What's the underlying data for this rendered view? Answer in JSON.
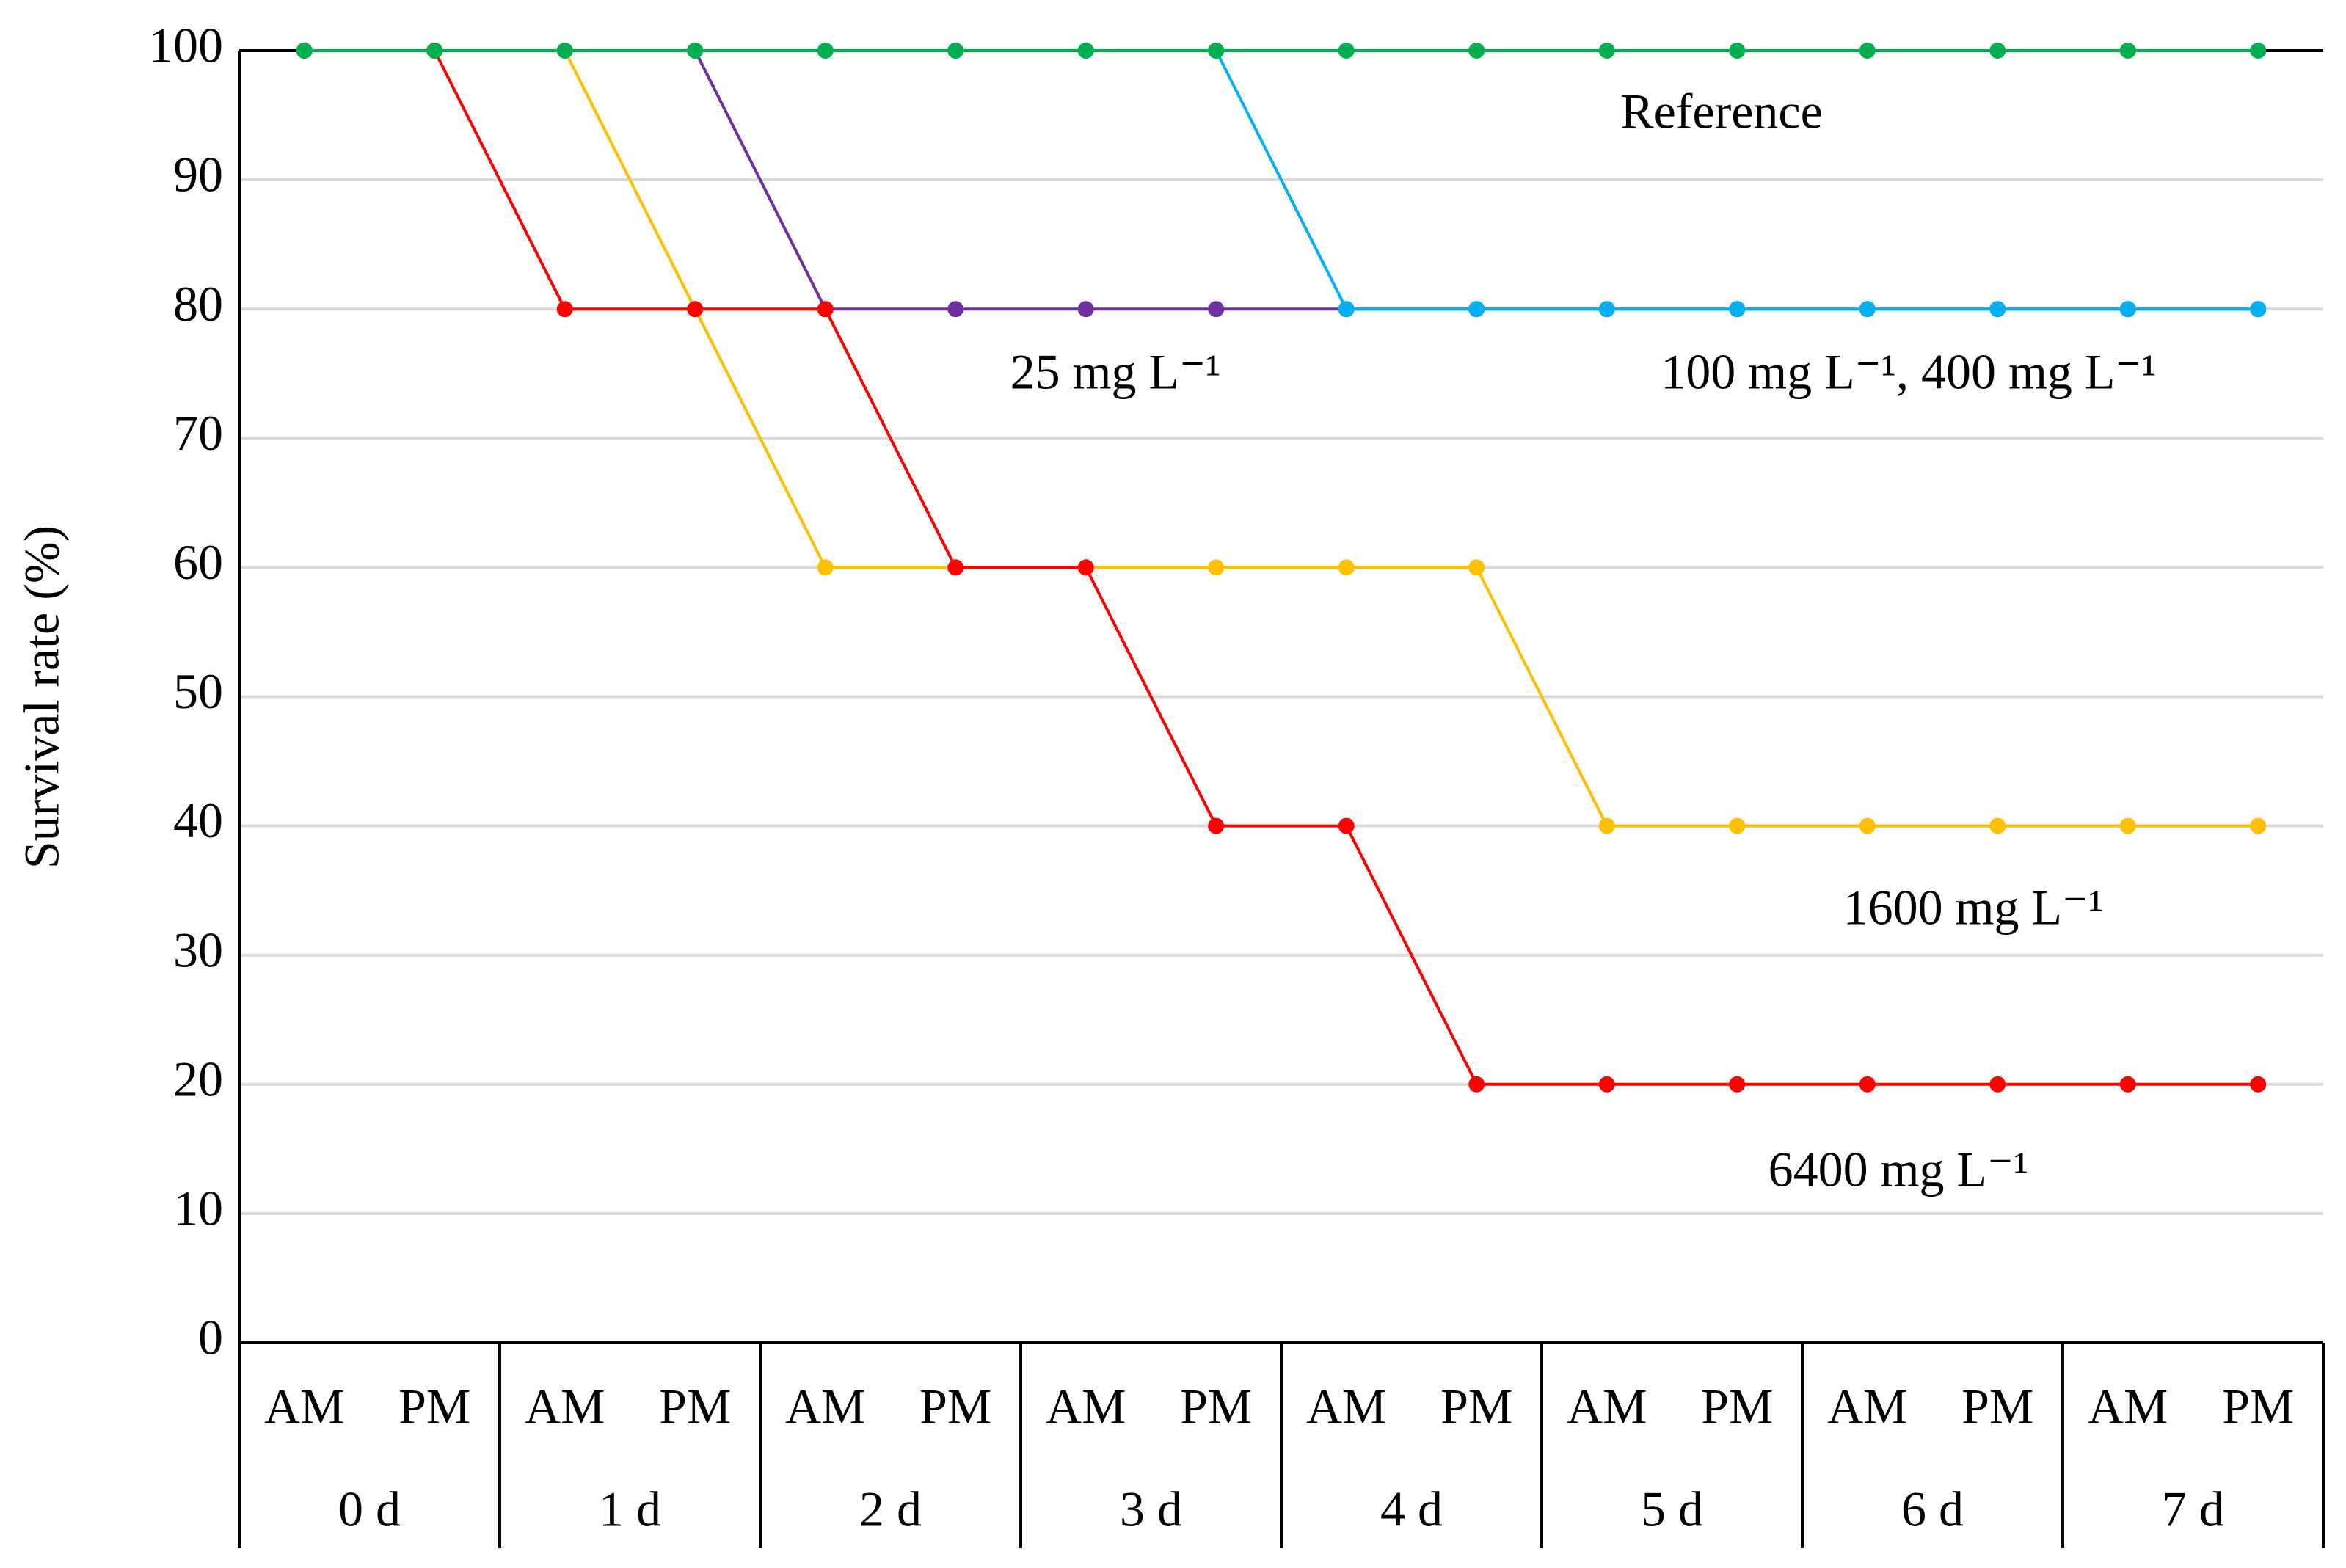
{
  "chart_data": {
    "type": "line",
    "y_label": "Survival rate (%)",
    "categories": [
      "AM",
      "PM",
      "AM",
      "PM",
      "AM",
      "PM",
      "AM",
      "PM",
      "AM",
      "PM",
      "AM",
      "PM",
      "AM",
      "PM",
      "AM",
      "PM"
    ],
    "groups": [
      "0 d",
      "1 d",
      "2 d",
      "3 d",
      "4 d",
      "5 d",
      "6 d",
      "7 d"
    ],
    "series": [
      {
        "name": "Reference",
        "color": "#00b050",
        "values": [
          100,
          100,
          100,
          100,
          100,
          100,
          100,
          100,
          100,
          100,
          100,
          100,
          100,
          100,
          100,
          100
        ]
      },
      {
        "name": "25 mg L⁻¹",
        "color": "#7030a0",
        "values": [
          100,
          100,
          100,
          100,
          80,
          80,
          80,
          80,
          80,
          80,
          80,
          80,
          80,
          80,
          80,
          80
        ]
      },
      {
        "name": "100 mg L⁻¹, 400 mg L⁻¹",
        "color": "#00b0f0",
        "values": [
          100,
          100,
          100,
          100,
          100,
          100,
          100,
          100,
          80,
          80,
          80,
          80,
          80,
          80,
          80,
          80
        ]
      },
      {
        "name": "1600 mg L⁻¹",
        "color": "#ffc000",
        "values": [
          100,
          100,
          100,
          80,
          60,
          60,
          60,
          60,
          60,
          60,
          40,
          40,
          40,
          40,
          40,
          40
        ]
      },
      {
        "name": "6400 mg L⁻¹",
        "color": "#ff0000",
        "values": [
          100,
          100,
          80,
          80,
          80,
          60,
          60,
          40,
          40,
          20,
          20,
          20,
          20,
          20,
          20,
          20
        ]
      }
    ],
    "ylim": [
      0,
      100
    ],
    "yticks": [
      0,
      10,
      20,
      30,
      40,
      50,
      60,
      70,
      80,
      90,
      100
    ],
    "grid": true
  }
}
